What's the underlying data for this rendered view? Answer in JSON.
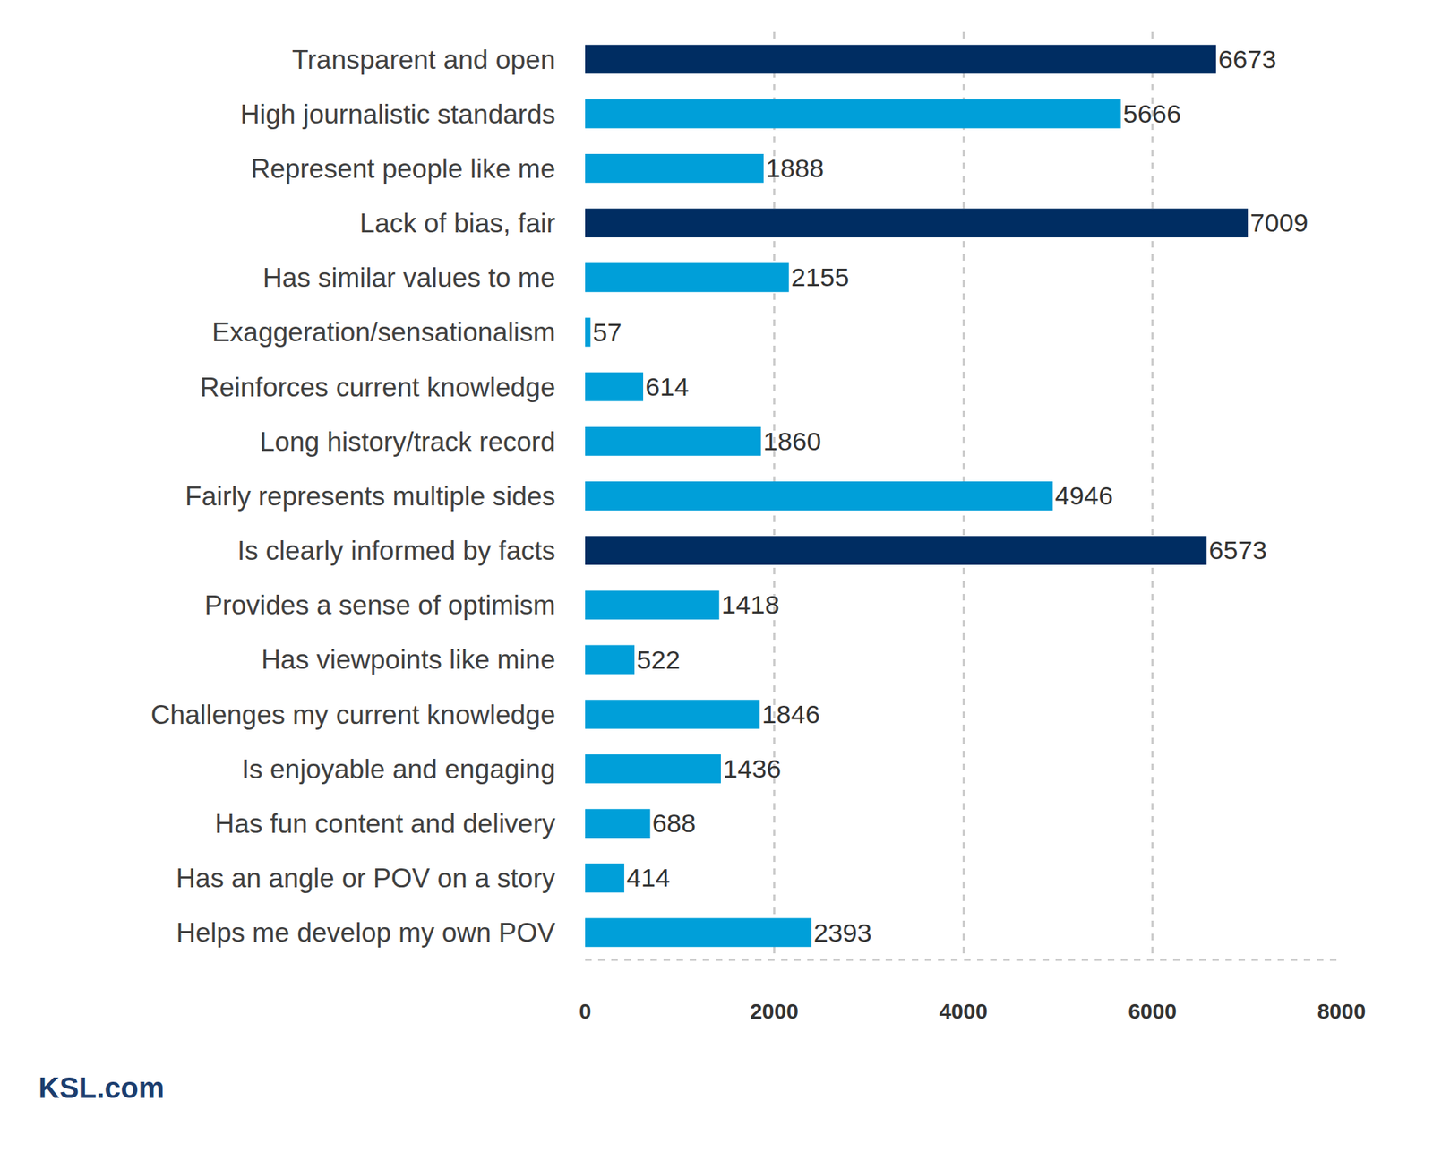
{
  "chart_data": {
    "type": "bar",
    "orientation": "horizontal",
    "categories": [
      "Transparent and open",
      "High journalistic standards",
      "Represent people like me",
      "Lack of bias, fair",
      "Has similar values to me",
      "Exaggeration/sensationalism",
      "Reinforces current knowledge",
      "Long history/track record",
      "Fairly represents multiple sides",
      "Is clearly informed by facts",
      "Provides a sense of optimism",
      "Has viewpoints like mine",
      "Challenges my current knowledge",
      "Is enjoyable and engaging",
      "Has fun content and delivery",
      "Has an angle or POV on a story",
      "Helps me develop my own POV"
    ],
    "values": [
      6673,
      5666,
      1888,
      7009,
      2155,
      57,
      614,
      1860,
      4946,
      6573,
      1418,
      522,
      1846,
      1436,
      688,
      414,
      2393
    ],
    "colors": [
      "#002d62",
      "#009fd9",
      "#009fd9",
      "#002d62",
      "#009fd9",
      "#009fd9",
      "#009fd9",
      "#009fd9",
      "#009fd9",
      "#002d62",
      "#009fd9",
      "#009fd9",
      "#009fd9",
      "#009fd9",
      "#009fd9",
      "#009fd9",
      "#009fd9"
    ],
    "xlim": [
      0,
      8000
    ],
    "xticks": [
      0,
      2000,
      4000,
      6000,
      8000
    ],
    "grid": true,
    "data_labels": true,
    "annotations": [
      "KSL.com"
    ]
  }
}
